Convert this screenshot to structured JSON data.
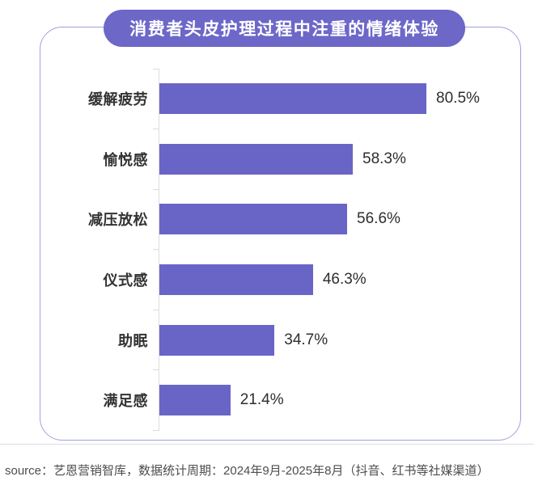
{
  "page": {
    "source_note": "source：艺恩营销智库，数据统计周期：2024年9月-2025年8月（抖音、红书等社媒渠道）"
  },
  "chart_data": {
    "type": "bar",
    "orientation": "horizontal",
    "title": "消费者头皮护理过程中注重的情绪体验",
    "categories": [
      "缓解疲劳",
      "愉悦感",
      "减压放松",
      "仪式感",
      "助眠",
      "满足感"
    ],
    "values": [
      80.5,
      58.3,
      56.6,
      46.3,
      34.7,
      21.4
    ],
    "value_labels": [
      "80.5%",
      "58.3%",
      "56.6%",
      "46.3%",
      "34.7%",
      "21.4%"
    ],
    "xlim": [
      0,
      100
    ],
    "grid": false,
    "legend_position": "none",
    "bar_color": "#6965c7",
    "title_pill_color": "#6d67c8",
    "card_border_color": "#9fa1e0",
    "axis_color": "#dcdcdc"
  }
}
